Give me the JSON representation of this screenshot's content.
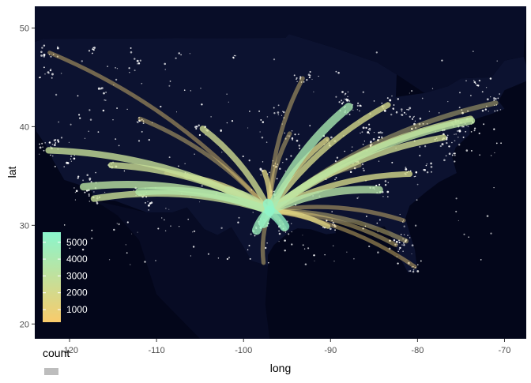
{
  "chart_data": {
    "type": "map",
    "xlabel": "long",
    "ylabel": "lat",
    "xlim": [
      -124,
      -67.5
    ],
    "ylim": [
      18.5,
      52.2
    ],
    "xticks": [
      -120,
      -110,
      -100,
      -90,
      -80,
      -70
    ],
    "yticks": [
      20,
      30,
      40,
      50
    ],
    "xtick_labels": [
      "-120",
      "-110",
      "-100",
      "-90",
      "-80",
      "-70"
    ],
    "ytick_labels": [
      "20",
      "30",
      "40",
      "50"
    ],
    "grid": false,
    "background": "#03061a",
    "land_color": "#0c1230",
    "city_color": "#ffffff",
    "hub": {
      "long": -97.0,
      "lat": 32.9
    },
    "routes": [
      {
        "long": -122.3,
        "lat": 47.5,
        "count": 700
      },
      {
        "long": -122.4,
        "lat": 37.6,
        "count": 2700
      },
      {
        "long": -118.4,
        "lat": 33.9,
        "count": 3300
      },
      {
        "long": -117.2,
        "lat": 32.7,
        "count": 2600
      },
      {
        "long": -112.0,
        "lat": 33.4,
        "count": 3600
      },
      {
        "long": -111.9,
        "lat": 40.8,
        "count": 900
      },
      {
        "long": -115.2,
        "lat": 36.1,
        "count": 2500
      },
      {
        "long": -104.7,
        "lat": 39.8,
        "count": 2300
      },
      {
        "long": -106.6,
        "lat": 35.0,
        "count": 1800
      },
      {
        "long": -93.2,
        "lat": 44.9,
        "count": 900
      },
      {
        "long": -87.9,
        "lat": 42.0,
        "count": 4100
      },
      {
        "long": -83.4,
        "lat": 42.2,
        "count": 2000
      },
      {
        "long": -73.8,
        "lat": 40.6,
        "count": 3200
      },
      {
        "long": -73.9,
        "lat": 40.8,
        "count": 2400
      },
      {
        "long": -71.0,
        "lat": 42.4,
        "count": 1400
      },
      {
        "long": -77.0,
        "lat": 38.9,
        "count": 2300
      },
      {
        "long": -80.9,
        "lat": 35.2,
        "count": 2000
      },
      {
        "long": -84.4,
        "lat": 33.6,
        "count": 3500
      },
      {
        "long": -86.7,
        "lat": 36.1,
        "count": 1300
      },
      {
        "long": -90.4,
        "lat": 38.7,
        "count": 1700
      },
      {
        "long": -90.3,
        "lat": 29.9,
        "count": 1500
      },
      {
        "long": -95.3,
        "lat": 29.9,
        "count": 5200
      },
      {
        "long": -95.3,
        "lat": 29.6,
        "count": 1400
      },
      {
        "long": -98.5,
        "lat": 29.5,
        "count": 4700
      },
      {
        "long": -97.7,
        "lat": 30.2,
        "count": 5000
      },
      {
        "long": -82.5,
        "lat": 28.0,
        "count": 900
      },
      {
        "long": -81.3,
        "lat": 28.4,
        "count": 1200
      },
      {
        "long": -80.3,
        "lat": 25.8,
        "count": 600
      },
      {
        "long": -81.6,
        "lat": 30.5,
        "count": 800
      },
      {
        "long": -97.6,
        "lat": 35.4,
        "count": 1500
      },
      {
        "long": -94.7,
        "lat": 39.3,
        "count": 1000
      },
      {
        "long": -97.7,
        "lat": 26.2,
        "count": 900
      },
      {
        "long": -101.8,
        "lat": 33.6,
        "count": 3000
      },
      {
        "long": -108.9,
        "lat": 35.3,
        "count": 700
      },
      {
        "long": -97.2,
        "lat": 32.2,
        "count": 5300
      }
    ],
    "legend": {
      "title": "count",
      "position": "bottom-left",
      "breaks": [
        5000,
        4000,
        3000,
        2000,
        1000
      ],
      "labels": [
        "5000",
        "4000",
        "3000",
        "2000",
        "1000"
      ],
      "min": 250,
      "max": 5600,
      "low_color": "#f9cb6b",
      "high_color": "#8af6cd"
    }
  }
}
